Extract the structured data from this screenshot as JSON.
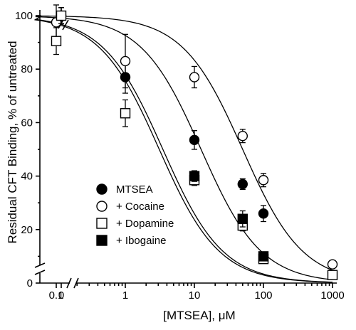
{
  "chart_data": {
    "type": "scatter",
    "xlabel": "[MTSEA], μM",
    "ylabel": "Residual CFT Binding, % of untreated",
    "x_scale": "log",
    "x_ticks": [
      {
        "value": 0,
        "label": "0"
      },
      {
        "value": 0.1,
        "label": "0.1"
      },
      {
        "value": 1,
        "label": "1"
      },
      {
        "value": 10,
        "label": "10"
      },
      {
        "value": 100,
        "label": "100"
      },
      {
        "value": 1000,
        "label": "1000"
      }
    ],
    "y_ticks": [
      0,
      20,
      40,
      60,
      80,
      100
    ],
    "ylim": [
      0,
      105
    ],
    "legend_position": "lower-left",
    "series": [
      {
        "name": "MTSEA",
        "marker": "filled-circle",
        "points": [
          {
            "x": 0,
            "y": 100,
            "err": 3
          },
          {
            "x": 1,
            "y": 77,
            "err": 6
          },
          {
            "x": 10,
            "y": 53.5,
            "err": 3.5
          },
          {
            "x": 50,
            "y": 37,
            "err": 2
          },
          {
            "x": 100,
            "y": 26,
            "err": 3
          }
        ],
        "ec50": 12.5
      },
      {
        "name": "+ Cocaine",
        "marker": "open-circle",
        "points": [
          {
            "x": 0,
            "y": 100,
            "err": 3
          },
          {
            "x": 0.1,
            "y": 97.5,
            "err": 6.5
          },
          {
            "x": 1,
            "y": 83,
            "err": 10
          },
          {
            "x": 10,
            "y": 77,
            "err": 4
          },
          {
            "x": 50,
            "y": 55,
            "err": 2.5
          },
          {
            "x": 100,
            "y": 38.5,
            "err": 2.5
          },
          {
            "x": 1000,
            "y": 7,
            "err": 1
          }
        ],
        "ec50": 50
      },
      {
        "name": "+ Dopamine",
        "marker": "open-square",
        "points": [
          {
            "x": 0,
            "y": 100,
            "err": 3
          },
          {
            "x": 0.1,
            "y": 90.5,
            "err": 5
          },
          {
            "x": 1,
            "y": 63.5,
            "err": 5
          },
          {
            "x": 10,
            "y": 38.5,
            "err": 2
          },
          {
            "x": 50,
            "y": 21.5,
            "err": 2
          },
          {
            "x": 100,
            "y": 9,
            "err": 1.5
          },
          {
            "x": 1000,
            "y": 3,
            "err": 1
          }
        ],
        "ec50": 3.5
      },
      {
        "name": "+ Ibogaine",
        "marker": "filled-square",
        "points": [
          {
            "x": 10,
            "y": 40,
            "err": 2
          },
          {
            "x": 50,
            "y": 24,
            "err": 3
          },
          {
            "x": 100,
            "y": 10,
            "err": 1.5
          }
        ],
        "ec50": 3.1
      }
    ]
  }
}
